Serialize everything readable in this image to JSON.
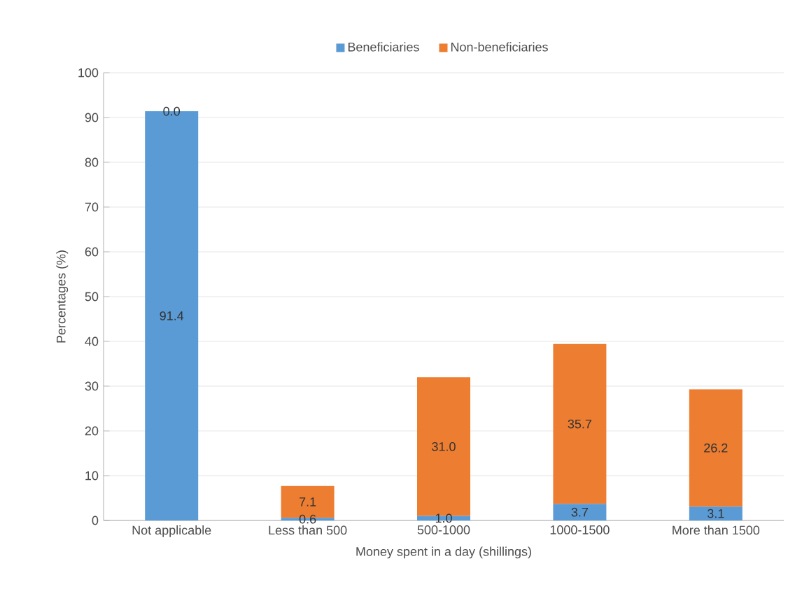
{
  "chart_data": {
    "type": "bar",
    "stacked": true,
    "xlabel": "Money spent in a day (shillings)",
    "ylabel": "Percentages (%)",
    "categories": [
      "Not applicable",
      "Less than 500",
      "500-1000",
      "1000-1500",
      "More than 1500"
    ],
    "series": [
      {
        "name": "Beneficiaries",
        "color": "#5b9bd5",
        "values": [
          91.4,
          0.6,
          1.0,
          3.7,
          3.1
        ],
        "value_labels": [
          "91.4",
          "0.6",
          "1.0",
          "3.7",
          "3.1"
        ]
      },
      {
        "name": "Non-beneficiaries",
        "color": "#ed7d31",
        "values": [
          0.0,
          7.1,
          31.0,
          35.7,
          26.2
        ],
        "value_labels": [
          "0.0",
          "7.1",
          "31.0",
          "35.7",
          "26.2"
        ]
      }
    ],
    "ylim": [
      0,
      100
    ],
    "yticks": [
      0,
      10,
      20,
      30,
      40,
      50,
      60,
      70,
      80,
      90,
      100
    ],
    "grid": "y",
    "legend": "top"
  }
}
